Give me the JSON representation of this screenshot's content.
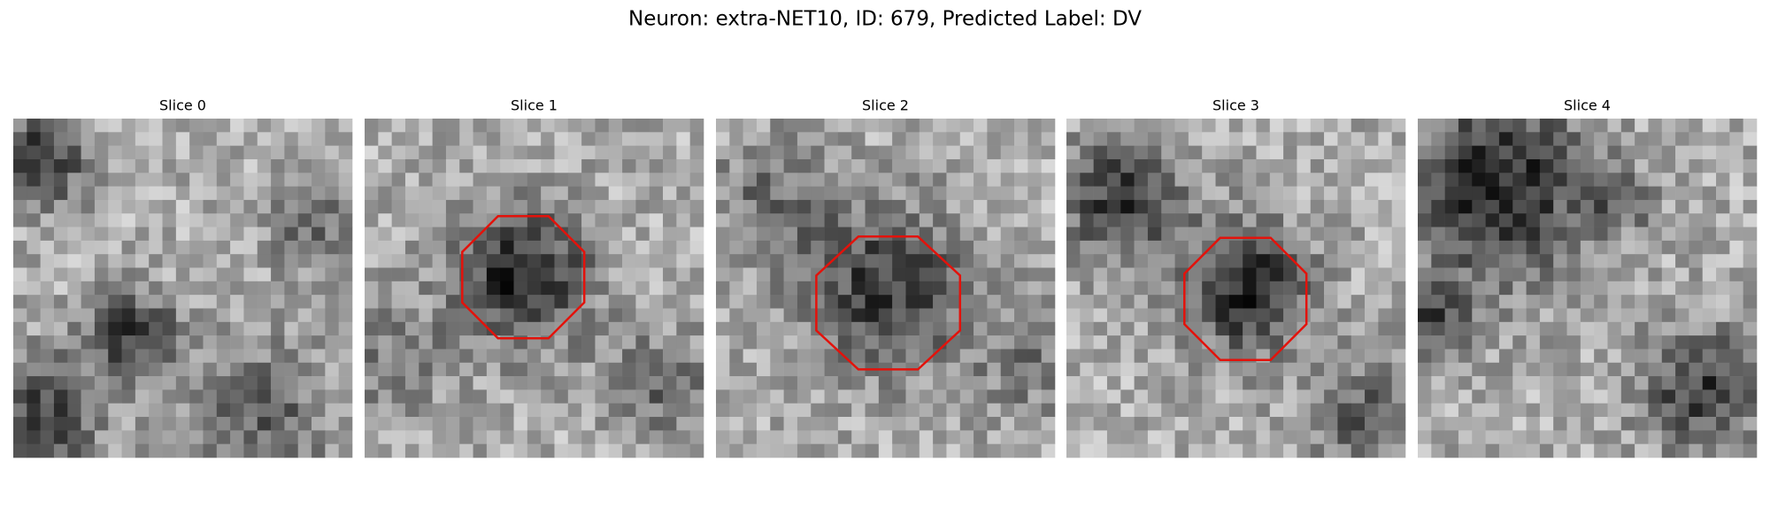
{
  "title": "Neuron: extra-NET10, ID: 679, Predicted Label: DV",
  "panels": [
    {
      "title": "Slice 0"
    },
    {
      "title": "Slice 1"
    },
    {
      "title": "Slice 2"
    },
    {
      "title": "Slice 3"
    },
    {
      "title": "Slice 4"
    }
  ]
}
